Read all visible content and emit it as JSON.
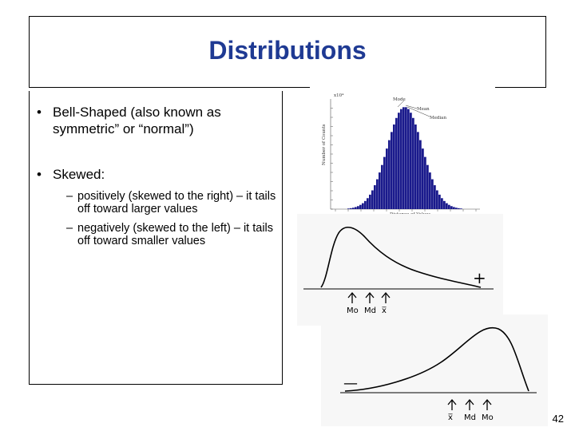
{
  "slide": {
    "title": "Distributions",
    "bullets": [
      {
        "text": "Bell-Shaped (also known as symmetric” or “normal”)"
      },
      {
        "text": "Skewed:"
      }
    ],
    "sub_bullets": [
      {
        "text": "positively (skewed to the right) – it tails off toward larger values"
      },
      {
        "text": "negatively (skewed to the left) – it tails off toward smaller values"
      }
    ],
    "slide_number": "42"
  },
  "figures": {
    "bell": {
      "exponent": "x10⁴",
      "labels": {
        "mode": "Mode",
        "mean": "Mean",
        "median": "Median"
      },
      "xlabel": "Distance of Values",
      "ylabel": "Number of Counts"
    },
    "positive": {
      "sign": "+",
      "labels": [
        "Mo",
        "Md",
        "x̅"
      ]
    },
    "negative": {
      "sign": "—",
      "labels": [
        "x̅",
        "Md",
        "Mo"
      ]
    }
  },
  "colors": {
    "title": "#1f3a93",
    "bars": "#1a1a8c"
  }
}
